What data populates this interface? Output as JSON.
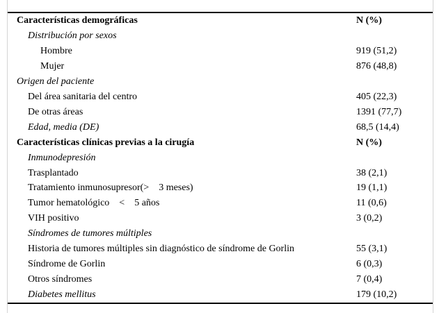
{
  "page": {
    "background_color": "#ffffff",
    "frame_line_color": "#d4d4d4",
    "rule_color": "#000000",
    "text_color": "#000000"
  },
  "table": {
    "value_column_header": "N (%)",
    "rows": [
      {
        "label": "Características demográficas",
        "value": "N (%)",
        "style": "bold",
        "indent": 0
      },
      {
        "label": "Distribución por sexos",
        "value": "",
        "style": "italic",
        "indent": 1
      },
      {
        "label": "Hombre",
        "value": "919 (51,2)",
        "style": "normal",
        "indent": 2
      },
      {
        "label": "Mujer",
        "value": "876 (48,8)",
        "style": "normal",
        "indent": 2
      },
      {
        "label": "Origen del paciente",
        "value": "",
        "style": "italic",
        "indent": 0
      },
      {
        "label": "Del área sanitaria del centro",
        "value": "405 (22,3)",
        "style": "normal",
        "indent": 1
      },
      {
        "label": "De otras áreas",
        "value": "1391 (77,7)",
        "style": "normal",
        "indent": 1
      },
      {
        "label": "Edad, media (DE)",
        "value": "68,5 (14,4)",
        "style": "italic",
        "indent": 1
      },
      {
        "label": "Características clínicas previas a la cirugía",
        "value": "N (%)",
        "style": "bold",
        "indent": 0
      },
      {
        "label": "Inmunodepresión",
        "value": "",
        "style": "italic",
        "indent": 1
      },
      {
        "label": "Trasplantado",
        "value": "38 (2,1)",
        "style": "normal",
        "indent": 1
      },
      {
        "label": "Tratamiento inmunosupresor(>    3 meses)",
        "value": "19 (1,1)",
        "style": "normal",
        "indent": 1
      },
      {
        "label": "Tumor hematológico    <    5 años",
        "value": "11 (0,6)",
        "style": "normal",
        "indent": 1
      },
      {
        "label": "VIH positivo",
        "value": "3 (0,2)",
        "style": "normal",
        "indent": 1
      },
      {
        "label": "Síndromes de tumores múltiples",
        "value": "",
        "style": "italic",
        "indent": 1
      },
      {
        "label": "Historia de tumores múltiples sin diagnóstico de síndrome de Gorlin",
        "value": "55 (3,1)",
        "style": "normal",
        "indent": 1
      },
      {
        "label": "Síndrome de Gorlin",
        "value": "6 (0,3)",
        "style": "normal",
        "indent": 1
      },
      {
        "label": "Otros síndromes",
        "value": "7 (0,4)",
        "style": "normal",
        "indent": 1
      },
      {
        "label": "Diabetes mellitus",
        "value": "179 (10,2)",
        "style": "italic",
        "indent": 1
      }
    ]
  }
}
